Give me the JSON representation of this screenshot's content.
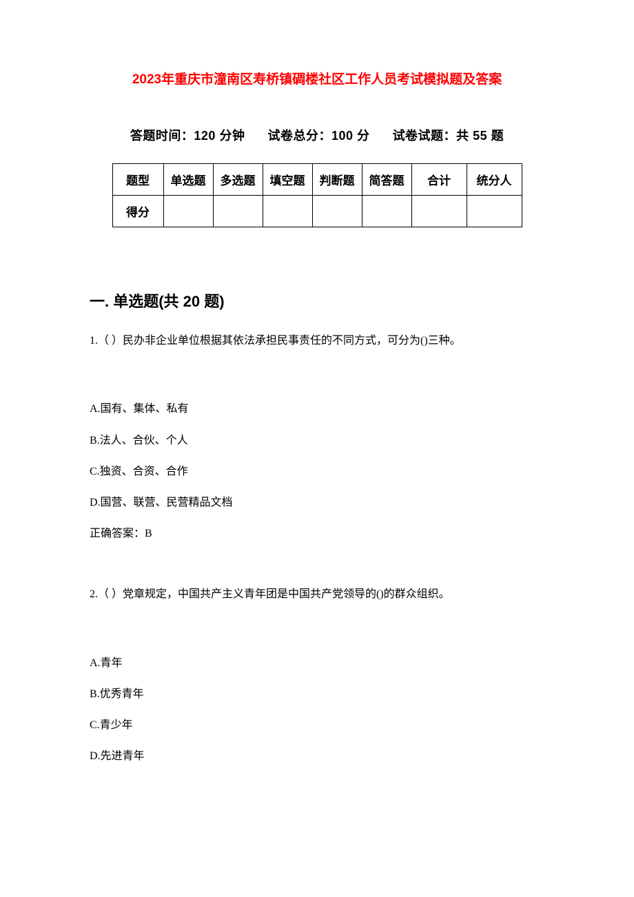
{
  "title_prefix": "2023",
  "title_rest": "年重庆市潼南区寿桥镇碉楼社区工作人员考试模拟题及答案",
  "meta": {
    "time_label": "答题时间：",
    "time_value": "120 分钟",
    "total_label": "试卷总分：",
    "total_value": "100 分",
    "count_label": "试卷试题：共",
    "count_value": " 55 题"
  },
  "score_table": {
    "row1": [
      "题型",
      "单选题",
      "多选题",
      "填空题",
      "判断题",
      "简答题",
      "合计",
      "统分人"
    ],
    "row2_label": "得分"
  },
  "section1_heading": "一. 单选题(共 20 题)",
  "questions": [
    {
      "stem": "1.（ ）民办非企业单位根据其依法承担民事责任的不同方式，可分为()三种。",
      "options": [
        "A.国有、集体、私有",
        "B.法人、合伙、个人",
        "C.独资、合资、合作",
        "D.国营、联营、民营精品文档"
      ],
      "answer": "正确答案：B"
    },
    {
      "stem": "2.（ ）党章规定，中国共产主义青年团是中国共产党领导的()的群众组织。",
      "options": [
        "A.青年",
        "B.优秀青年",
        "C.青少年",
        "D.先进青年"
      ],
      "answer": ""
    }
  ]
}
